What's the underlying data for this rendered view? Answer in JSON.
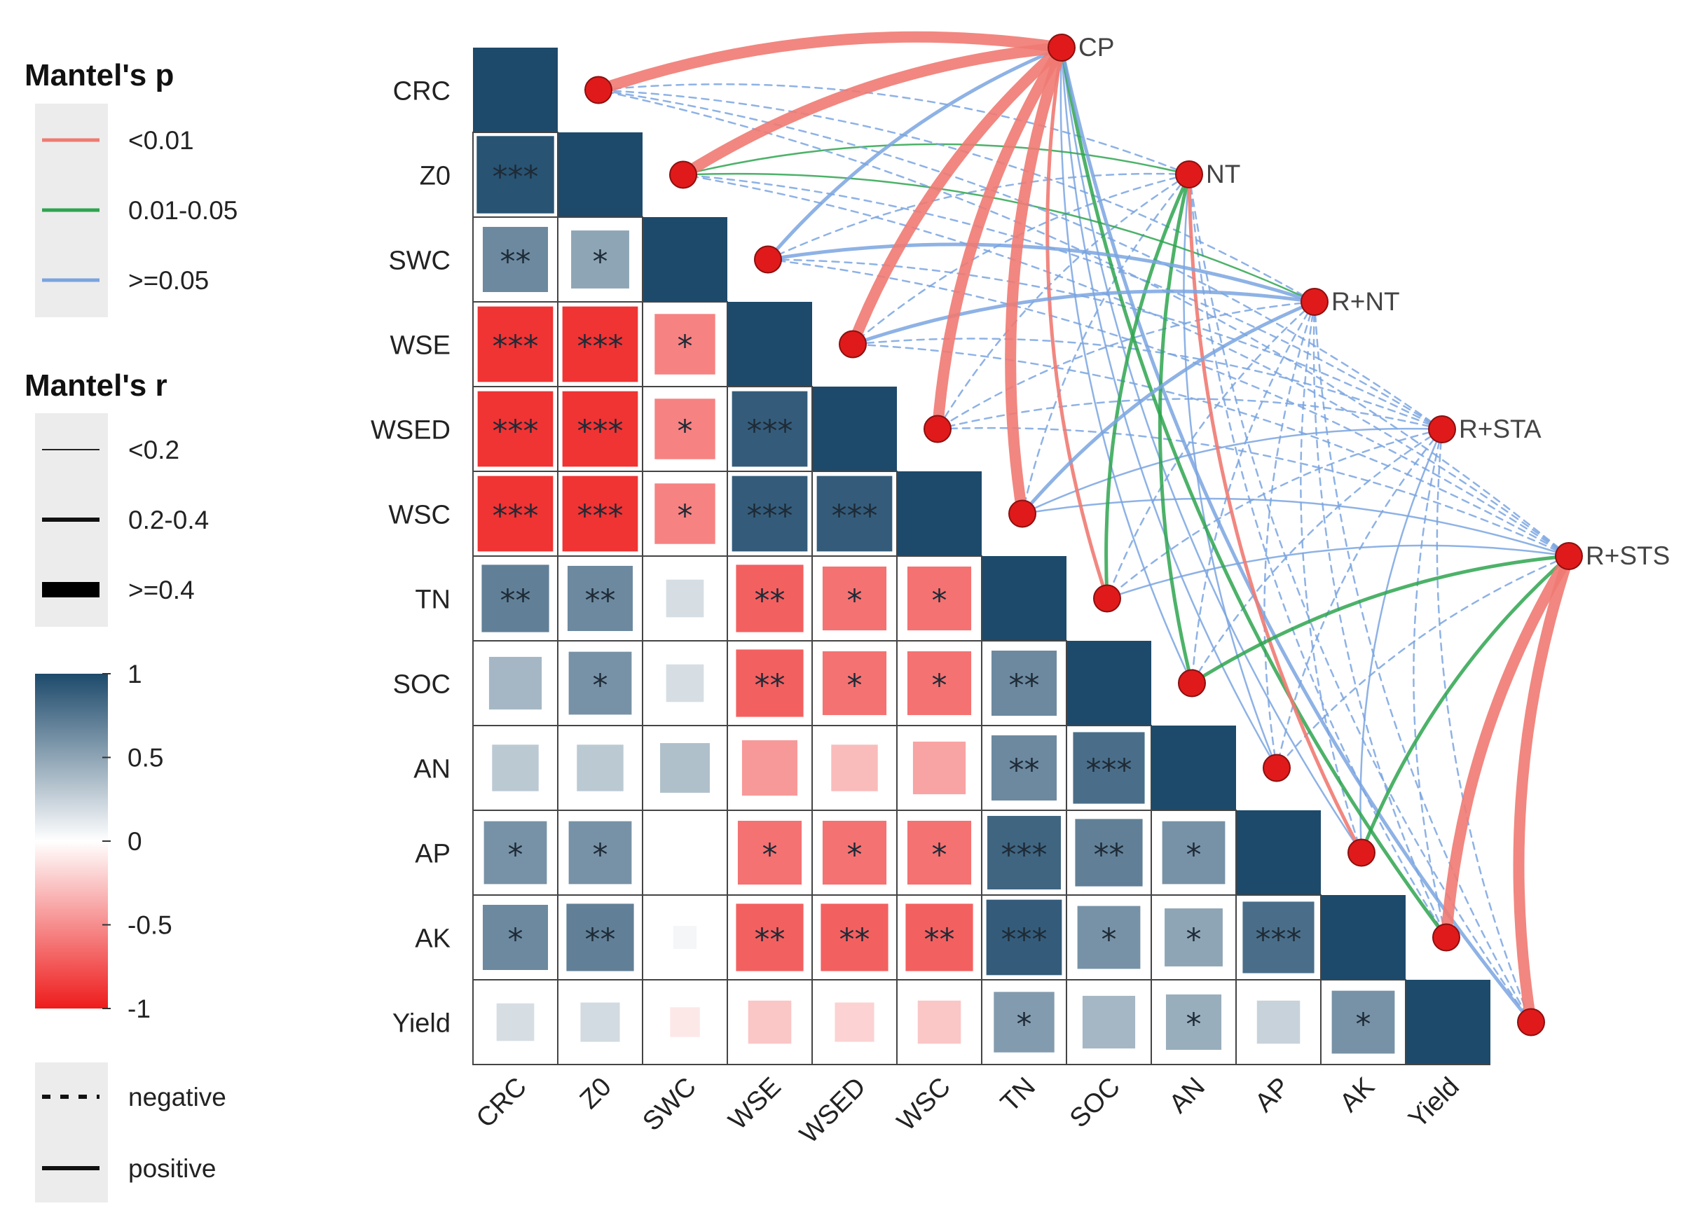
{
  "legends": {
    "mantel_p": {
      "title": "Mantel's p",
      "items": [
        {
          "label": "<0.01",
          "color": "#f07a72"
        },
        {
          "label": "0.01-0.05",
          "color": "#2ea44f"
        },
        {
          "label": ">=0.05",
          "color": "#7aa4e0"
        }
      ]
    },
    "mantel_r": {
      "title": "Mantel's r",
      "items": [
        {
          "label": "<0.2"
        },
        {
          "label": "0.2-0.4"
        },
        {
          "label": ">=0.4"
        }
      ]
    },
    "colorbar": {
      "ticks": [
        {
          "label": "1",
          "value": 1
        },
        {
          "label": "0.5",
          "value": 0.5
        },
        {
          "label": "0",
          "value": 0
        },
        {
          "label": "-0.5",
          "value": -0.5
        },
        {
          "label": "-1",
          "value": -1
        }
      ],
      "high_color": "#1d4a6b",
      "mid_color": "#ffffff",
      "low_color": "#ee1c1c"
    },
    "sign": {
      "items": [
        {
          "label": "negative"
        },
        {
          "label": "positive"
        }
      ]
    }
  },
  "chart_data": {
    "type": "heatmap",
    "variables": [
      "CRC",
      "Z0",
      "SWC",
      "WSE",
      "WSED",
      "WSC",
      "TN",
      "SOC",
      "AN",
      "AP",
      "AK",
      "Yield"
    ],
    "correlation_lower": [
      [],
      [
        0.95
      ],
      [
        0.65,
        0.5
      ],
      [
        -0.9,
        -0.9,
        -0.55
      ],
      [
        -0.9,
        -0.9,
        -0.55,
        0.9
      ],
      [
        -0.9,
        -0.9,
        -0.55,
        0.9,
        0.9
      ],
      [
        0.7,
        0.65,
        0.18,
        -0.7,
        -0.62,
        -0.62
      ],
      [
        0.4,
        0.6,
        0.18,
        -0.7,
        -0.62,
        -0.62,
        0.65
      ],
      [
        0.3,
        0.3,
        0.35,
        -0.45,
        -0.3,
        -0.4,
        0.65,
        0.8
      ],
      [
        0.6,
        0.6,
        0.0,
        -0.62,
        -0.62,
        -0.62,
        0.85,
        0.7,
        0.6
      ],
      [
        0.65,
        0.7,
        0.05,
        -0.7,
        -0.7,
        -0.7,
        0.9,
        0.6,
        0.5,
        0.8
      ],
      [
        0.18,
        0.2,
        -0.1,
        -0.25,
        -0.2,
        -0.25,
        0.55,
        0.4,
        0.45,
        0.25,
        0.6
      ]
    ],
    "significance_lower": [
      [],
      [
        "***"
      ],
      [
        "**",
        "*"
      ],
      [
        "***",
        "***",
        "*"
      ],
      [
        "***",
        "***",
        "*",
        "***"
      ],
      [
        "***",
        "***",
        "*",
        "***",
        "***"
      ],
      [
        "**",
        "**",
        "",
        "**",
        "*",
        "*"
      ],
      [
        "",
        "*",
        "",
        "**",
        "*",
        "*",
        "**"
      ],
      [
        "",
        "",
        "",
        "",
        "",
        "",
        "**",
        "***"
      ],
      [
        "*",
        "*",
        "",
        "*",
        "*",
        "*",
        "***",
        "**",
        "*"
      ],
      [
        "*",
        "**",
        "",
        "**",
        "**",
        "**",
        "***",
        "*",
        "*",
        "***"
      ],
      [
        "",
        "",
        "",
        "",
        "",
        "",
        "*",
        "",
        "*",
        "",
        "*"
      ]
    ],
    "scale": [
      -1,
      1
    ],
    "treatments": [
      "CP",
      "NT",
      "R+NT",
      "R+STA",
      "R+STS"
    ],
    "mantel_links": [
      {
        "from": "CP",
        "to": "CRC",
        "p": "<0.01",
        "r": ">=0.4",
        "sign": "positive"
      },
      {
        "from": "CP",
        "to": "Z0",
        "p": "<0.01",
        "r": ">=0.4",
        "sign": "positive"
      },
      {
        "from": "CP",
        "to": "SWC",
        "p": ">=0.05",
        "r": "0.2-0.4",
        "sign": "positive"
      },
      {
        "from": "CP",
        "to": "WSE",
        "p": "<0.01",
        "r": ">=0.4",
        "sign": "positive"
      },
      {
        "from": "CP",
        "to": "WSED",
        "p": "<0.01",
        "r": ">=0.4",
        "sign": "positive"
      },
      {
        "from": "CP",
        "to": "WSC",
        "p": "<0.01",
        "r": ">=0.4",
        "sign": "positive"
      },
      {
        "from": "CP",
        "to": "TN",
        "p": "<0.01",
        "r": "0.2-0.4",
        "sign": "positive"
      },
      {
        "from": "CP",
        "to": "SOC",
        "p": ">=0.05",
        "r": "<0.2",
        "sign": "positive"
      },
      {
        "from": "CP",
        "to": "AN",
        "p": ">=0.05",
        "r": "<0.2",
        "sign": "positive"
      },
      {
        "from": "CP",
        "to": "AP",
        "p": ">=0.05",
        "r": "<0.2",
        "sign": "positive"
      },
      {
        "from": "CP",
        "to": "AK",
        "p": "0.01-0.05",
        "r": "0.2-0.4",
        "sign": "positive"
      },
      {
        "from": "CP",
        "to": "Yield",
        "p": ">=0.05",
        "r": "0.2-0.4",
        "sign": "positive"
      },
      {
        "from": "NT",
        "to": "CRC",
        "p": ">=0.05",
        "r": "<0.2",
        "sign": "negative"
      },
      {
        "from": "NT",
        "to": "Z0",
        "p": "0.01-0.05",
        "r": "<0.2",
        "sign": "positive"
      },
      {
        "from": "NT",
        "to": "SWC",
        "p": ">=0.05",
        "r": "<0.2",
        "sign": "negative"
      },
      {
        "from": "NT",
        "to": "WSE",
        "p": ">=0.05",
        "r": "<0.2",
        "sign": "negative"
      },
      {
        "from": "NT",
        "to": "WSED",
        "p": ">=0.05",
        "r": "<0.2",
        "sign": "negative"
      },
      {
        "from": "NT",
        "to": "WSC",
        "p": ">=0.05",
        "r": "<0.2",
        "sign": "negative"
      },
      {
        "from": "NT",
        "to": "TN",
        "p": "0.01-0.05",
        "r": "0.2-0.4",
        "sign": "positive"
      },
      {
        "from": "NT",
        "to": "SOC",
        "p": "0.01-0.05",
        "r": "0.2-0.4",
        "sign": "positive"
      },
      {
        "from": "NT",
        "to": "AN",
        "p": ">=0.05",
        "r": "<0.2",
        "sign": "positive"
      },
      {
        "from": "NT",
        "to": "AP",
        "p": "<0.01",
        "r": "0.2-0.4",
        "sign": "positive"
      },
      {
        "from": "NT",
        "to": "AK",
        "p": ">=0.05",
        "r": "<0.2",
        "sign": "negative"
      },
      {
        "from": "NT",
        "to": "Yield",
        "p": ">=0.05",
        "r": "<0.2",
        "sign": "negative"
      },
      {
        "from": "R+NT",
        "to": "CRC",
        "p": ">=0.05",
        "r": "<0.2",
        "sign": "negative"
      },
      {
        "from": "R+NT",
        "to": "Z0",
        "p": "0.01-0.05",
        "r": "<0.2",
        "sign": "positive"
      },
      {
        "from": "R+NT",
        "to": "SWC",
        "p": ">=0.05",
        "r": "0.2-0.4",
        "sign": "positive"
      },
      {
        "from": "R+NT",
        "to": "WSE",
        "p": ">=0.05",
        "r": "0.2-0.4",
        "sign": "positive"
      },
      {
        "from": "R+NT",
        "to": "WSED",
        "p": ">=0.05",
        "r": "<0.2",
        "sign": "negative"
      },
      {
        "from": "R+NT",
        "to": "WSC",
        "p": ">=0.05",
        "r": "0.2-0.4",
        "sign": "positive"
      },
      {
        "from": "R+NT",
        "to": "TN",
        "p": ">=0.05",
        "r": "<0.2",
        "sign": "negative"
      },
      {
        "from": "R+NT",
        "to": "SOC",
        "p": ">=0.05",
        "r": "<0.2",
        "sign": "negative"
      },
      {
        "from": "R+NT",
        "to": "AN",
        "p": ">=0.05",
        "r": "<0.2",
        "sign": "negative"
      },
      {
        "from": "R+NT",
        "to": "AP",
        "p": ">=0.05",
        "r": "<0.2",
        "sign": "negative"
      },
      {
        "from": "R+NT",
        "to": "AK",
        "p": ">=0.05",
        "r": "<0.2",
        "sign": "negative"
      },
      {
        "from": "R+NT",
        "to": "Yield",
        "p": ">=0.05",
        "r": "<0.2",
        "sign": "negative"
      },
      {
        "from": "R+STA",
        "to": "CRC",
        "p": ">=0.05",
        "r": "<0.2",
        "sign": "negative"
      },
      {
        "from": "R+STA",
        "to": "Z0",
        "p": ">=0.05",
        "r": "<0.2",
        "sign": "negative"
      },
      {
        "from": "R+STA",
        "to": "SWC",
        "p": ">=0.05",
        "r": "<0.2",
        "sign": "negative"
      },
      {
        "from": "R+STA",
        "to": "WSE",
        "p": ">=0.05",
        "r": "<0.2",
        "sign": "negative"
      },
      {
        "from": "R+STA",
        "to": "WSED",
        "p": ">=0.05",
        "r": "<0.2",
        "sign": "negative"
      },
      {
        "from": "R+STA",
        "to": "WSC",
        "p": ">=0.05",
        "r": "<0.2",
        "sign": "positive"
      },
      {
        "from": "R+STA",
        "to": "TN",
        "p": ">=0.05",
        "r": "<0.2",
        "sign": "negative"
      },
      {
        "from": "R+STA",
        "to": "SOC",
        "p": ">=0.05",
        "r": "<0.2",
        "sign": "negative"
      },
      {
        "from": "R+STA",
        "to": "AN",
        "p": ">=0.05",
        "r": "<0.2",
        "sign": "negative"
      },
      {
        "from": "R+STA",
        "to": "AP",
        "p": ">=0.05",
        "r": "<0.2",
        "sign": "positive"
      },
      {
        "from": "R+STA",
        "to": "AK",
        "p": ">=0.05",
        "r": "<0.2",
        "sign": "negative"
      },
      {
        "from": "R+STA",
        "to": "Yield",
        "p": ">=0.05",
        "r": "<0.2",
        "sign": "negative"
      },
      {
        "from": "R+STS",
        "to": "CRC",
        "p": ">=0.05",
        "r": "<0.2",
        "sign": "negative"
      },
      {
        "from": "R+STS",
        "to": "Z0",
        "p": ">=0.05",
        "r": "<0.2",
        "sign": "negative"
      },
      {
        "from": "R+STS",
        "to": "SWC",
        "p": ">=0.05",
        "r": "<0.2",
        "sign": "negative"
      },
      {
        "from": "R+STS",
        "to": "WSE",
        "p": ">=0.05",
        "r": "<0.2",
        "sign": "negative"
      },
      {
        "from": "R+STS",
        "to": "WSED",
        "p": ">=0.05",
        "r": "<0.2",
        "sign": "negative"
      },
      {
        "from": "R+STS",
        "to": "WSC",
        "p": ">=0.05",
        "r": "<0.2",
        "sign": "positive"
      },
      {
        "from": "R+STS",
        "to": "TN",
        "p": ">=0.05",
        "r": "<0.2",
        "sign": "positive"
      },
      {
        "from": "R+STS",
        "to": "SOC",
        "p": "0.01-0.05",
        "r": "0.2-0.4",
        "sign": "positive"
      },
      {
        "from": "R+STS",
        "to": "AN",
        "p": ">=0.05",
        "r": "<0.2",
        "sign": "negative"
      },
      {
        "from": "R+STS",
        "to": "AP",
        "p": "0.01-0.05",
        "r": "0.2-0.4",
        "sign": "positive"
      },
      {
        "from": "R+STS",
        "to": "AK",
        "p": "<0.01",
        "r": ">=0.4",
        "sign": "positive"
      },
      {
        "from": "R+STS",
        "to": "Yield",
        "p": "<0.01",
        "r": ">=0.4",
        "sign": "positive"
      }
    ]
  }
}
